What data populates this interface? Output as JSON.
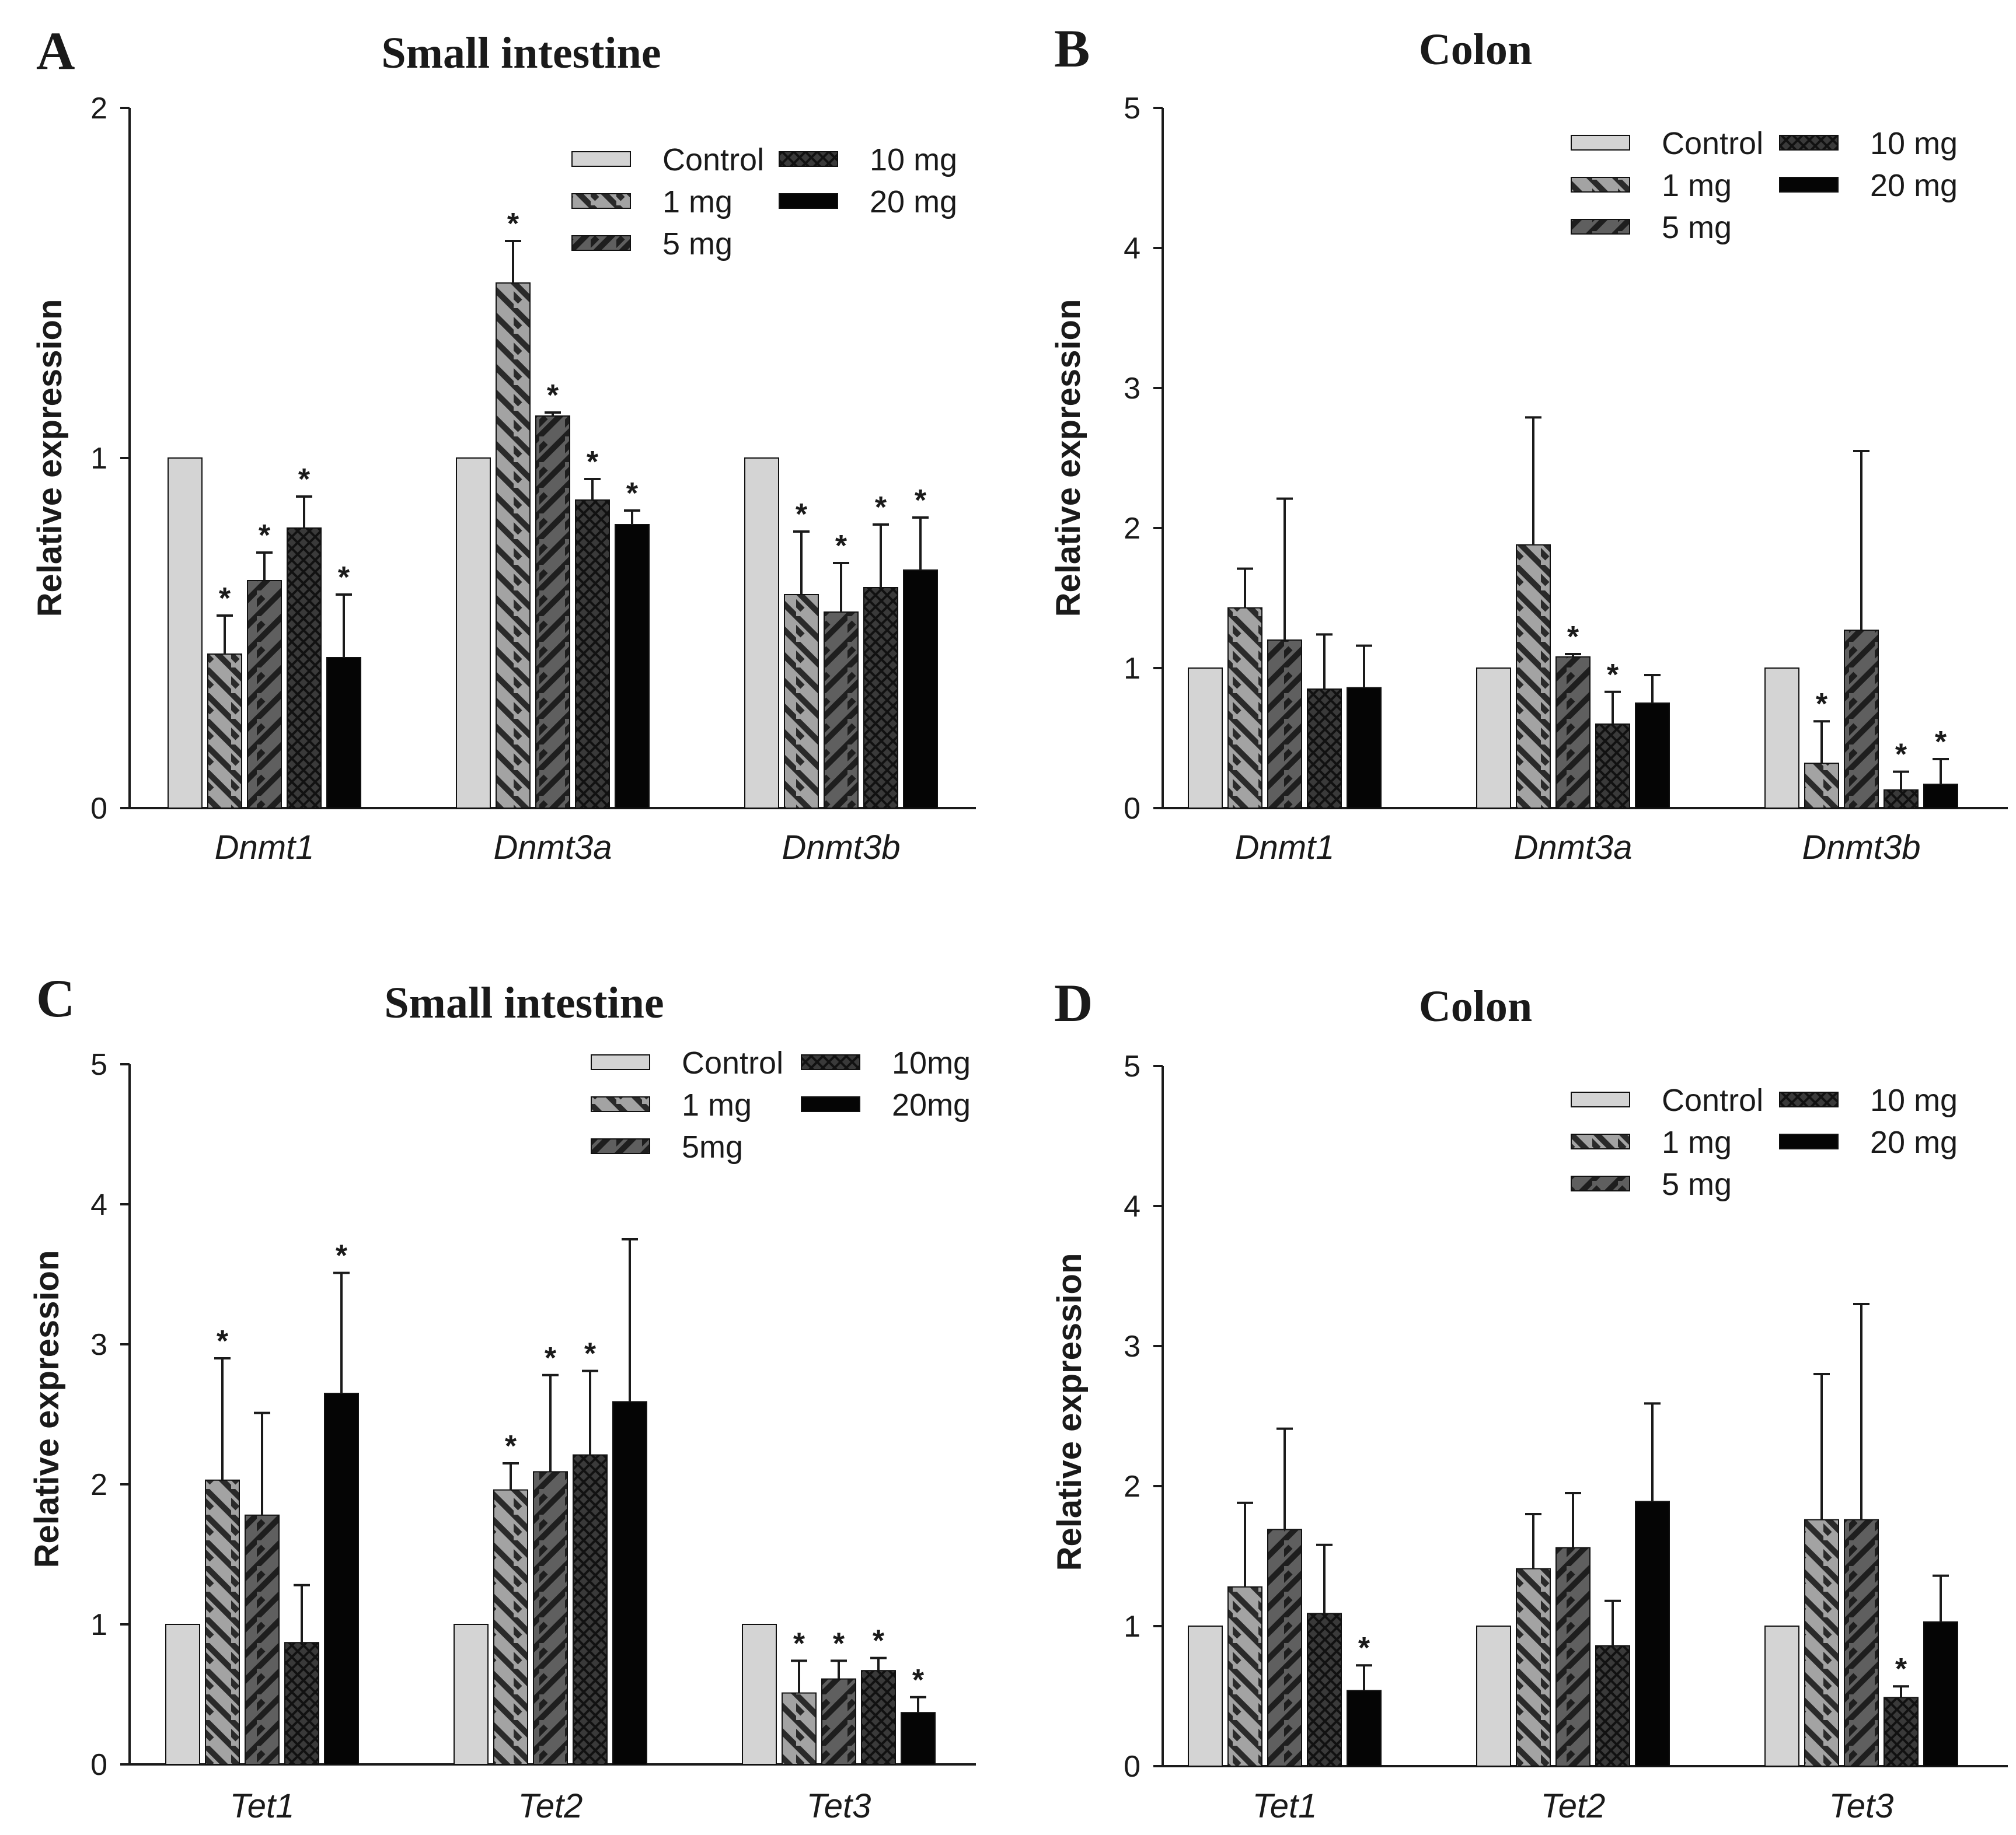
{
  "colors": {
    "Control": "#d4d4d4",
    "1 mg": "#a3a3a3",
    "5 mg": "#5f5f5f",
    "10 mg": "#3a3a3a",
    "20 mg": "#050505",
    "axis": "#1a1a1a",
    "error_bar": "#1a1a1a"
  },
  "chart_data": [
    {
      "type": "bar",
      "panel": "A",
      "title": "Small intestine",
      "ylabel": "Relative expression",
      "xlabel": "",
      "ylim": [
        0,
        2
      ],
      "yticks": [
        "0",
        "1",
        "2"
      ],
      "categories": [
        "Dnmt1",
        "Dnmt3a",
        "Dnmt3b"
      ],
      "legend": [
        "Control",
        "1 mg",
        "5 mg",
        "10 mg",
        "20 mg"
      ],
      "legend_position": "top-right",
      "series": [
        {
          "name": "Control",
          "values": [
            1.0,
            1.0,
            1.0
          ],
          "errors": [
            0,
            0,
            0
          ],
          "significant": [
            false,
            false,
            false
          ]
        },
        {
          "name": "1 mg",
          "values": [
            0.44,
            1.5,
            0.61
          ],
          "errors": [
            0.11,
            0.12,
            0.18
          ],
          "significant": [
            true,
            true,
            true
          ]
        },
        {
          "name": "5 mg",
          "values": [
            0.65,
            1.12,
            0.56
          ],
          "errors": [
            0.08,
            0.01,
            0.14
          ],
          "significant": [
            true,
            true,
            true
          ]
        },
        {
          "name": "10 mg",
          "values": [
            0.8,
            0.88,
            0.63
          ],
          "errors": [
            0.09,
            0.06,
            0.18
          ],
          "significant": [
            true,
            true,
            true
          ]
        },
        {
          "name": "20 mg",
          "values": [
            0.43,
            0.81,
            0.68
          ],
          "errors": [
            0.18,
            0.04,
            0.15
          ],
          "significant": [
            true,
            true,
            true
          ]
        }
      ]
    },
    {
      "type": "bar",
      "panel": "B",
      "title": "Colon",
      "ylabel": "Relative expression",
      "xlabel": "",
      "ylim": [
        0,
        5
      ],
      "yticks": [
        "0",
        "1",
        "2",
        "3",
        "4",
        "5"
      ],
      "categories": [
        "Dnmt1",
        "Dnmt3a",
        "Dnmt3b"
      ],
      "legend": [
        "Control",
        "1 mg",
        "5 mg",
        "10 mg",
        "20 mg"
      ],
      "legend_position": "top-right",
      "series": [
        {
          "name": "Control",
          "values": [
            1.0,
            1.0,
            1.0
          ],
          "errors": [
            0,
            0,
            0
          ],
          "significant": [
            false,
            false,
            false
          ]
        },
        {
          "name": "1 mg",
          "values": [
            1.43,
            1.88,
            0.32
          ],
          "errors": [
            0.28,
            0.91,
            0.3
          ],
          "significant": [
            false,
            false,
            true
          ]
        },
        {
          "name": "5 mg",
          "values": [
            1.2,
            1.08,
            1.27
          ],
          "errors": [
            1.01,
            0.02,
            1.28
          ],
          "significant": [
            false,
            true,
            false
          ]
        },
        {
          "name": "10 mg",
          "values": [
            0.85,
            0.6,
            0.13
          ],
          "errors": [
            0.39,
            0.23,
            0.13
          ],
          "significant": [
            false,
            true,
            true
          ]
        },
        {
          "name": "20 mg",
          "values": [
            0.86,
            0.75,
            0.17
          ],
          "errors": [
            0.3,
            0.2,
            0.18
          ],
          "significant": [
            false,
            false,
            true
          ]
        }
      ]
    },
    {
      "type": "bar",
      "panel": "C",
      "title": "Small intestine",
      "ylabel": "Relative expression",
      "xlabel": "",
      "ylim": [
        0,
        5
      ],
      "yticks": [
        "0",
        "1",
        "2",
        "3",
        "4",
        "5"
      ],
      "categories": [
        "Tet1",
        "Tet2",
        "Tet3"
      ],
      "legend": [
        "Control",
        "1 mg",
        "5mg",
        "10mg",
        "20mg"
      ],
      "legend_position": "top-right",
      "series": [
        {
          "name": "Control",
          "values": [
            1.0,
            1.0,
            1.0
          ],
          "errors": [
            0,
            0,
            0
          ],
          "significant": [
            false,
            false,
            false
          ]
        },
        {
          "name": "1 mg",
          "values": [
            2.03,
            1.96,
            0.51
          ],
          "errors": [
            0.87,
            0.19,
            0.23
          ],
          "significant": [
            true,
            true,
            true
          ]
        },
        {
          "name": "5 mg",
          "values": [
            1.78,
            2.09,
            0.61
          ],
          "errors": [
            0.73,
            0.69,
            0.13
          ],
          "significant": [
            false,
            true,
            true
          ]
        },
        {
          "name": "10 mg",
          "values": [
            0.87,
            2.21,
            0.67
          ],
          "errors": [
            0.41,
            0.6,
            0.09
          ],
          "significant": [
            false,
            true,
            true
          ]
        },
        {
          "name": "20 mg",
          "values": [
            2.65,
            2.59,
            0.37
          ],
          "errors": [
            0.86,
            1.16,
            0.11
          ],
          "significant": [
            true,
            false,
            true
          ]
        }
      ]
    },
    {
      "type": "bar",
      "panel": "D",
      "title": "Colon",
      "ylabel": "Relative expression",
      "xlabel": "",
      "ylim": [
        0,
        5
      ],
      "yticks": [
        "0",
        "1",
        "2",
        "3",
        "4",
        "5"
      ],
      "categories": [
        "Tet1",
        "Tet2",
        "Tet3"
      ],
      "legend": [
        "Control",
        "1 mg",
        "5 mg",
        "10 mg",
        "20 mg"
      ],
      "legend_position": "top-right",
      "series": [
        {
          "name": "Control",
          "values": [
            1.0,
            1.0,
            1.0
          ],
          "errors": [
            0,
            0,
            0
          ],
          "significant": [
            false,
            false,
            false
          ]
        },
        {
          "name": "1 mg",
          "values": [
            1.28,
            1.41,
            1.76
          ],
          "errors": [
            0.6,
            0.39,
            1.04
          ],
          "significant": [
            false,
            false,
            false
          ]
        },
        {
          "name": "5 mg",
          "values": [
            1.69,
            1.56,
            1.76
          ],
          "errors": [
            0.72,
            0.39,
            1.54
          ],
          "significant": [
            false,
            false,
            false
          ]
        },
        {
          "name": "10 mg",
          "values": [
            1.09,
            0.86,
            0.49
          ],
          "errors": [
            0.49,
            0.32,
            0.08
          ],
          "significant": [
            false,
            false,
            true
          ]
        },
        {
          "name": "20 mg",
          "values": [
            0.54,
            1.89,
            1.03
          ],
          "errors": [
            0.18,
            0.7,
            0.33
          ],
          "significant": [
            true,
            false,
            false
          ]
        }
      ]
    }
  ]
}
